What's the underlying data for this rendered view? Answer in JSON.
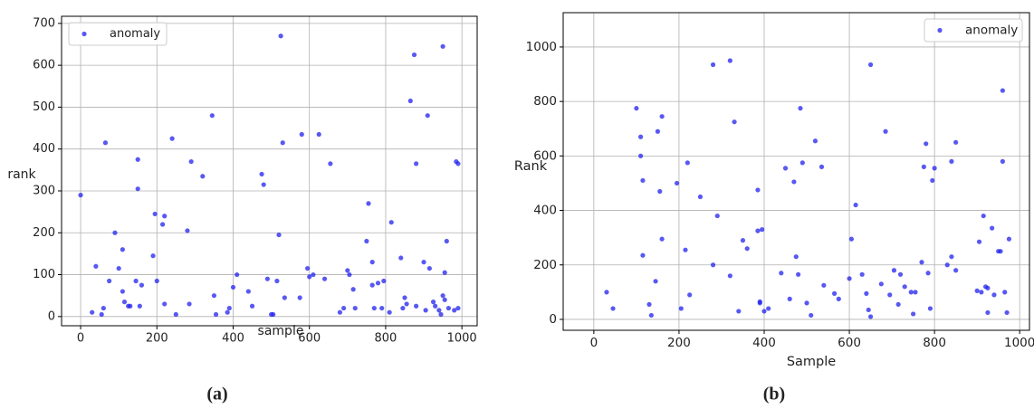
{
  "chart_data": [
    {
      "type": "scatter",
      "caption": "(a)",
      "xlabel": "sample",
      "ylabel": "rank",
      "xlim": [
        -50,
        1040
      ],
      "ylim": [
        -22,
        717
      ],
      "xticks": [
        0,
        200,
        400,
        600,
        800,
        1000
      ],
      "yticks": [
        0,
        100,
        200,
        300,
        400,
        500,
        600,
        700
      ],
      "grid": true,
      "legend": "upper left",
      "x": [
        0,
        30,
        40,
        55,
        60,
        65,
        75,
        90,
        100,
        110,
        110,
        115,
        125,
        130,
        145,
        150,
        150,
        155,
        160,
        190,
        195,
        200,
        215,
        220,
        220,
        240,
        250,
        280,
        285,
        290,
        320,
        345,
        350,
        355,
        385,
        390,
        400,
        410,
        440,
        450,
        475,
        480,
        490,
        500,
        505,
        515,
        520,
        525,
        530,
        535,
        575,
        580,
        595,
        600,
        610,
        625,
        640,
        655,
        680,
        690,
        700,
        705,
        715,
        720,
        750,
        755,
        765,
        765,
        770,
        780,
        790,
        795,
        810,
        815,
        840,
        845,
        850,
        855,
        865,
        875,
        880,
        880,
        900,
        905,
        910,
        915,
        925,
        930,
        940,
        945,
        950,
        950,
        955,
        955,
        960,
        965,
        980,
        985,
        990,
        990
      ],
      "series": [
        {
          "name": "anomaly",
          "color": "#2020ee",
          "values": [
            290,
            10,
            120,
            5,
            20,
            415,
            85,
            200,
            115,
            160,
            60,
            35,
            25,
            25,
            85,
            375,
            305,
            25,
            75,
            145,
            245,
            85,
            220,
            240,
            30,
            425,
            5,
            205,
            30,
            370,
            335,
            480,
            50,
            5,
            10,
            20,
            70,
            100,
            60,
            25,
            340,
            315,
            90,
            5,
            5,
            85,
            195,
            670,
            415,
            45,
            45,
            435,
            115,
            95,
            100,
            435,
            90,
            365,
            10,
            20,
            110,
            100,
            65,
            20,
            180,
            270,
            75,
            130,
            20,
            80,
            20,
            85,
            10,
            225,
            140,
            20,
            45,
            30,
            515,
            625,
            365,
            25,
            130,
            15,
            480,
            115,
            35,
            25,
            15,
            5,
            50,
            645,
            40,
            105,
            180,
            20,
            15,
            370,
            365,
            20
          ]
        }
      ]
    },
    {
      "type": "scatter",
      "caption": "(b)",
      "xlabel": "Sample",
      "ylabel": "Rank",
      "xlim": [
        -72,
        1023
      ],
      "ylim": [
        -40,
        1126
      ],
      "xticks": [
        0,
        200,
        400,
        600,
        800,
        1000
      ],
      "yticks": [
        0,
        200,
        400,
        600,
        800,
        1000
      ],
      "grid": true,
      "legend": "upper right",
      "x": [
        30,
        45,
        100,
        110,
        110,
        115,
        115,
        130,
        135,
        145,
        150,
        155,
        160,
        160,
        195,
        205,
        215,
        220,
        225,
        250,
        280,
        280,
        290,
        320,
        320,
        330,
        340,
        350,
        360,
        385,
        385,
        390,
        390,
        395,
        400,
        410,
        440,
        450,
        460,
        470,
        475,
        480,
        485,
        490,
        500,
        510,
        520,
        535,
        540,
        565,
        575,
        600,
        605,
        615,
        630,
        640,
        645,
        650,
        650,
        675,
        685,
        695,
        705,
        715,
        720,
        730,
        745,
        750,
        755,
        770,
        775,
        780,
        785,
        790,
        795,
        800,
        830,
        840,
        840,
        850,
        850,
        900,
        905,
        910,
        915,
        920,
        925,
        925,
        935,
        940,
        950,
        955,
        960,
        960,
        965,
        970,
        975
      ],
      "series": [
        {
          "name": "anomaly",
          "color": "#2020ee",
          "values": [
            100,
            40,
            775,
            670,
            600,
            510,
            235,
            55,
            15,
            140,
            690,
            470,
            745,
            295,
            500,
            40,
            255,
            575,
            90,
            450,
            935,
            200,
            380,
            950,
            160,
            725,
            30,
            290,
            260,
            475,
            325,
            60,
            65,
            330,
            30,
            40,
            170,
            555,
            75,
            505,
            230,
            165,
            775,
            575,
            60,
            15,
            655,
            560,
            125,
            95,
            75,
            150,
            295,
            420,
            165,
            95,
            35,
            10,
            935,
            130,
            690,
            90,
            180,
            55,
            165,
            120,
            100,
            20,
            100,
            210,
            560,
            645,
            170,
            40,
            510,
            555,
            200,
            580,
            230,
            650,
            180,
            105,
            285,
            100,
            380,
            120,
            25,
            115,
            335,
            90,
            250,
            250,
            580,
            840,
            100,
            25,
            295
          ]
        }
      ]
    }
  ]
}
